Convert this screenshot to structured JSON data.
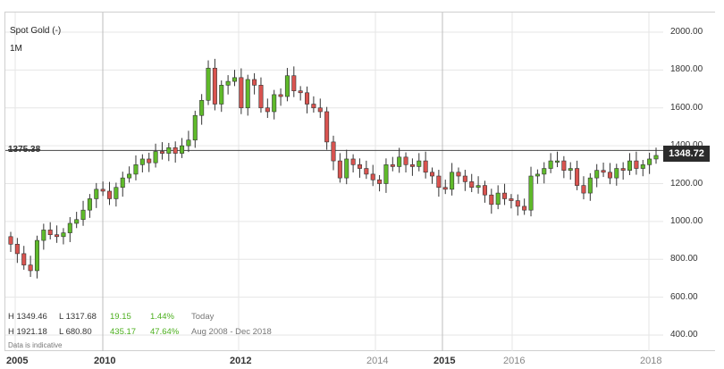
{
  "header": {
    "instrument": "Spot Gold (-)",
    "period": "1M"
  },
  "reference_line_label": "1375.38",
  "last_price": "1348.72",
  "stats": {
    "row1": {
      "high": "H 1349.46",
      "low": "L 1317.68",
      "change": "19.15",
      "pct": "1.44%",
      "range": "Today"
    },
    "row2": {
      "high": "H 1921.18",
      "low": "L 680.80",
      "change": "435.17",
      "pct": "47.64%",
      "range": "Aug 2008 - Dec 2018"
    },
    "note": "Data is indicative"
  },
  "colors": {
    "up": "#5fba2a",
    "down": "#d9534f",
    "wick": "#333333",
    "ref_line": "#444444",
    "grid": "#e6e6e6"
  },
  "chart_data": {
    "type": "candlestick",
    "ylim": [
      400,
      2000
    ],
    "yticks": [
      "2000.00",
      "1800.00",
      "1600.00",
      "1400.00",
      "1200.00",
      "1000.00",
      "800.00",
      "600.00",
      "400.00"
    ],
    "xticks": [
      "2005",
      "2010",
      "2012",
      "2014",
      "2015",
      "2016",
      "2018"
    ],
    "reference_value": 1375.38,
    "closes": [
      880,
      830,
      770,
      740,
      900,
      955,
      930,
      920,
      940,
      990,
      1010,
      1060,
      1120,
      1170,
      1160,
      1120,
      1180,
      1230,
      1250,
      1300,
      1330,
      1310,
      1370,
      1360,
      1390,
      1360,
      1400,
      1430,
      1560,
      1640,
      1810,
      1620,
      1720,
      1740,
      1760,
      1600,
      1750,
      1720,
      1600,
      1580,
      1670,
      1660,
      1770,
      1690,
      1680,
      1620,
      1600,
      1580,
      1420,
      1320,
      1230,
      1330,
      1300,
      1280,
      1250,
      1220,
      1200,
      1300,
      1290,
      1340,
      1300,
      1290,
      1320,
      1260,
      1240,
      1180,
      1170,
      1260,
      1240,
      1210,
      1180,
      1190,
      1140,
      1090,
      1150,
      1120,
      1110,
      1080,
      1060,
      1240,
      1250,
      1280,
      1320,
      1320,
      1270,
      1280,
      1190,
      1150,
      1230,
      1270,
      1260,
      1230,
      1280,
      1270,
      1320,
      1280,
      1300,
      1330,
      1348.72
    ],
    "opens": [
      920,
      880,
      830,
      770,
      740,
      900,
      955,
      930,
      920,
      940,
      990,
      1010,
      1060,
      1120,
      1170,
      1160,
      1120,
      1180,
      1230,
      1250,
      1300,
      1330,
      1310,
      1370,
      1360,
      1390,
      1360,
      1400,
      1430,
      1560,
      1640,
      1810,
      1620,
      1720,
      1740,
      1760,
      1600,
      1750,
      1720,
      1600,
      1580,
      1670,
      1660,
      1770,
      1690,
      1680,
      1620,
      1600,
      1580,
      1420,
      1320,
      1230,
      1330,
      1300,
      1280,
      1250,
      1220,
      1200,
      1300,
      1290,
      1340,
      1300,
      1290,
      1320,
      1260,
      1240,
      1180,
      1170,
      1260,
      1240,
      1210,
      1180,
      1190,
      1140,
      1090,
      1150,
      1120,
      1110,
      1080,
      1060,
      1240,
      1250,
      1280,
      1320,
      1320,
      1270,
      1280,
      1190,
      1150,
      1230,
      1270,
      1260,
      1230,
      1280,
      1270,
      1320,
      1280,
      1300,
      1330
    ]
  }
}
